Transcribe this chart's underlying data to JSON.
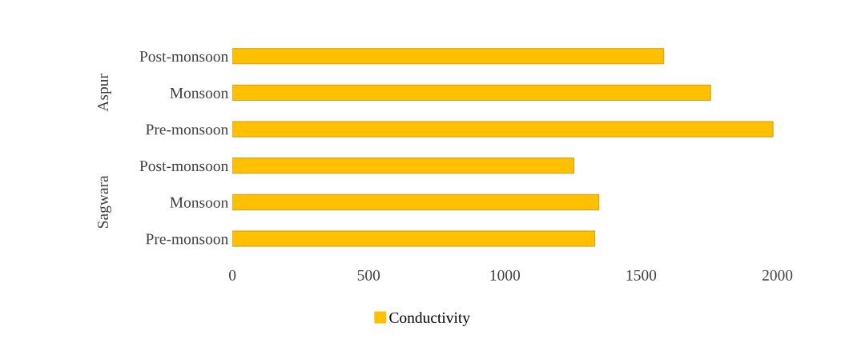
{
  "chart_data": {
    "type": "bar",
    "orientation": "horizontal",
    "categories": [
      "Post-monsoon",
      "Monsoon",
      "Pre-monsoon",
      "Post-monsoon",
      "Monsoon",
      "Pre-monsoon"
    ],
    "series": [
      {
        "name": "Conductivity",
        "color": "#ffc000",
        "values": [
          1583,
          1755,
          1984,
          1253,
          1345,
          1330
        ]
      }
    ],
    "annotations": [
      "Aspur",
      "Sagwara"
    ],
    "xlim": [
      0,
      2000
    ],
    "xticks": [
      0,
      500,
      1000,
      1500,
      2000
    ],
    "grid": false,
    "legend": "bottom"
  }
}
